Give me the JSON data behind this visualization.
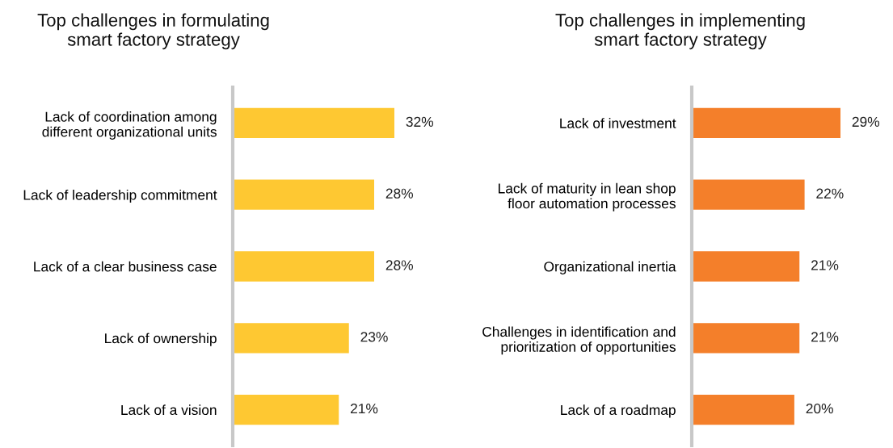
{
  "chart_data": [
    {
      "type": "bar",
      "orientation": "horizontal",
      "title": "Top challenges in formulating\nsmart factory strategy",
      "categories": [
        "Lack of coordination among\ndifferent organizational units",
        "Lack of leadership commitment",
        "Lack of a clear business case",
        "Lack of ownership",
        "Lack of a vision"
      ],
      "values": [
        32,
        28,
        28,
        23,
        21
      ],
      "value_labels": [
        "32%",
        "28%",
        "28%",
        "23%",
        "21%"
      ],
      "color": "#fec832",
      "grid": false,
      "legend": false,
      "tick_labels": "y"
    },
    {
      "type": "bar",
      "orientation": "horizontal",
      "title": "Top challenges in implementing\nsmart factory strategy",
      "categories": [
        "Lack of investment",
        "Lack of maturity in lean shop\nfloor automation processes",
        "Organizational inertia",
        "Challenges in identification and\nprioritization of opportunities",
        "Lack of a roadmap"
      ],
      "values": [
        29,
        22,
        21,
        21,
        20
      ],
      "value_labels": [
        "29%",
        "22%",
        "21%",
        "21%",
        "20%"
      ],
      "color": "#f47f2a",
      "grid": false,
      "legend": false,
      "tick_labels": "y"
    }
  ]
}
